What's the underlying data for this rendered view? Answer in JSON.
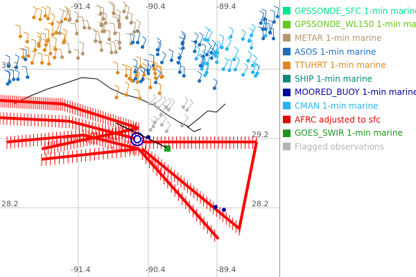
{
  "map": {
    "lon_labels_top": [
      "-91.4",
      "-90.4",
      "-89.4"
    ],
    "lon_labels_bottom": [
      "-91.4",
      "-90.4",
      "-89.4"
    ],
    "lat_labels_left": [
      "30.2",
      "28.2"
    ],
    "lat_labels_right": [
      "29.2",
      "28.2"
    ],
    "colors": {
      "afrc": "#ff0000",
      "ttuhrt": "#e08a1e",
      "asos": "#1e6ebe",
      "cman": "#28b4f0",
      "metar": "#b4966e",
      "flagged": "#b4b4b4",
      "goes_swir": "#1ea01e",
      "moored_buoy": "#0000c8",
      "grid": "#c8c8c8",
      "coast": "#000000"
    }
  },
  "legend": {
    "items": [
      {
        "label": "GPSSONDE_SFC 1-min marine",
        "color": "#00e68c"
      },
      {
        "label": "GPSSONDE_WL150 1-min marine",
        "color": "#64c81e"
      },
      {
        "label": "METAR 1-min marine",
        "color": "#b4966e"
      },
      {
        "label": "ASOS 1-min marine",
        "color": "#1e6ebe"
      },
      {
        "label": "TTUHRT 1-min marine",
        "color": "#e08a1e"
      },
      {
        "label": "SHIP 1-min marine",
        "color": "#008c78"
      },
      {
        "label": "MOORED_BUOY 1-min marine",
        "color": "#0000a0"
      },
      {
        "label": "CMAN 1-min marine",
        "color": "#28b4f0"
      },
      {
        "label": "AFRC adjusted to sfc",
        "color": "#e60000"
      },
      {
        "label": "GOES_SWIR 1-min marine",
        "color": "#1e961e"
      },
      {
        "label": "Flagged observations",
        "color": "#b4b4b4"
      }
    ]
  }
}
